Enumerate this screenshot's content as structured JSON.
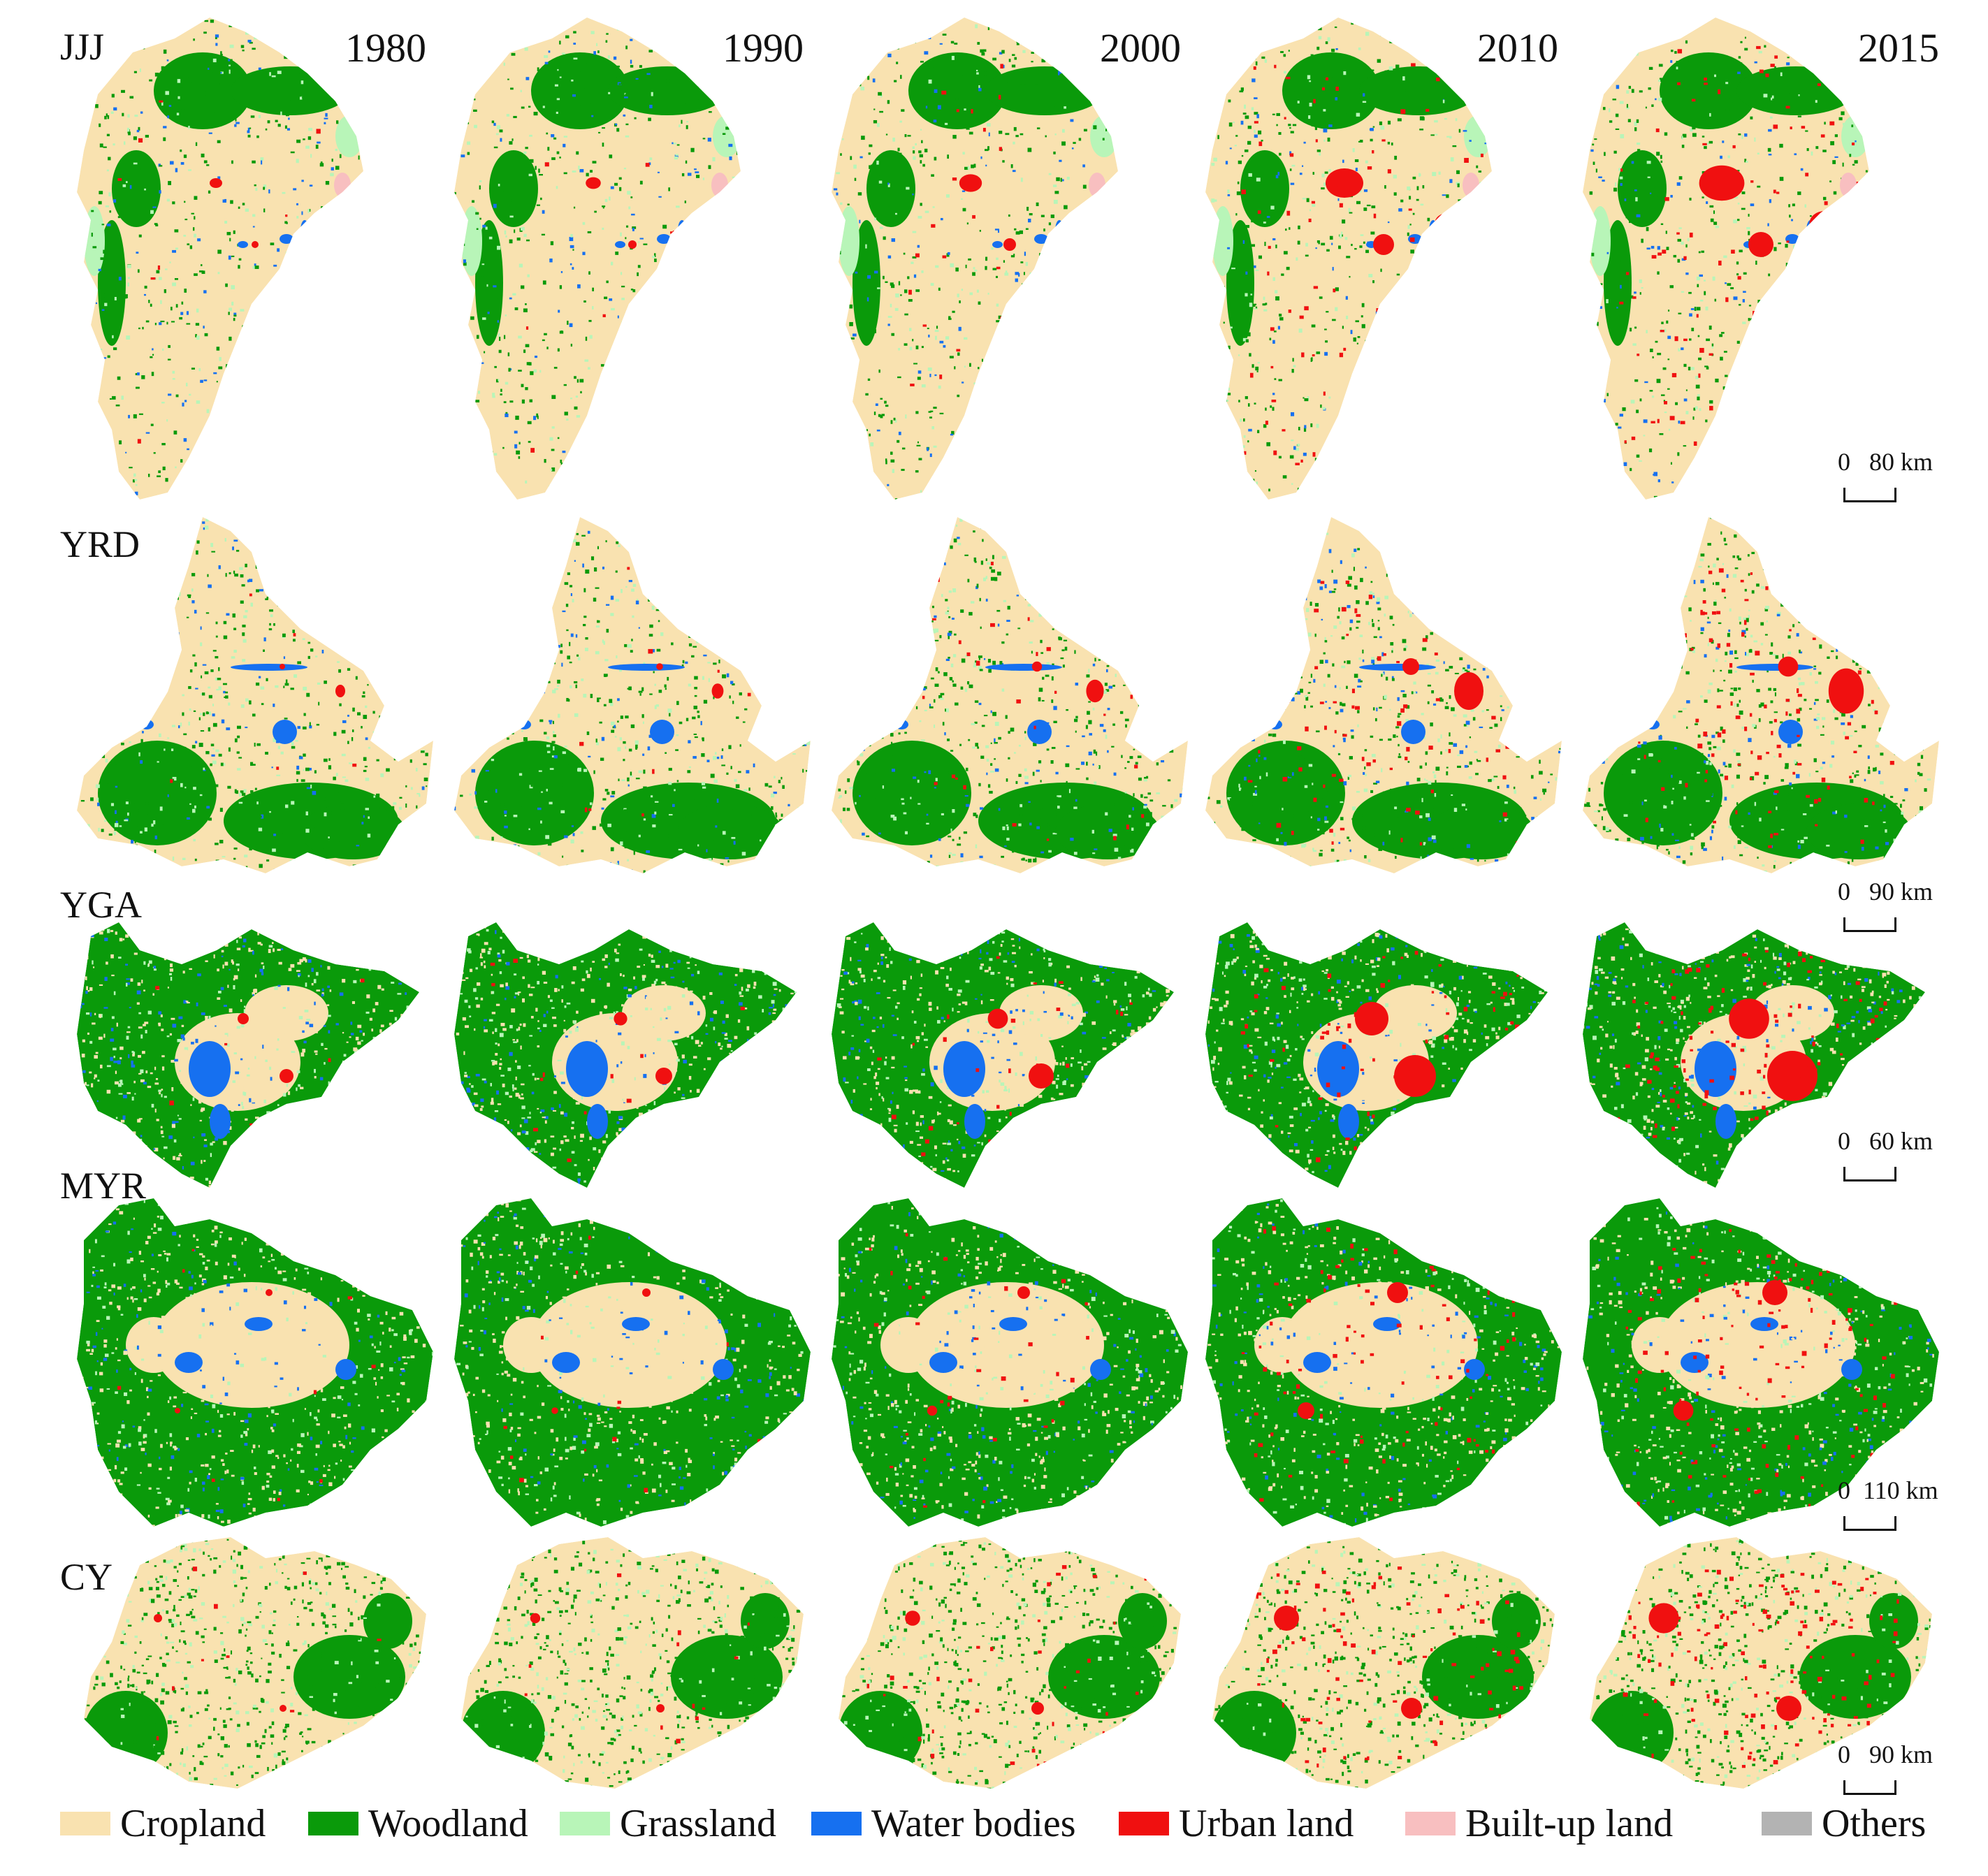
{
  "years": [
    "1980",
    "1990",
    "2000",
    "2010",
    "2015"
  ],
  "regions": [
    {
      "code": "JJJ",
      "scale": {
        "zero": "0",
        "distance": "80 km"
      }
    },
    {
      "code": "YRD",
      "scale": {
        "zero": "0",
        "distance": "90 km"
      }
    },
    {
      "code": "YGA",
      "scale": {
        "zero": "0",
        "distance": "60 km"
      }
    },
    {
      "code": "MYR",
      "scale": {
        "zero": "0",
        "distance": "110 km"
      }
    },
    {
      "code": "CY",
      "scale": {
        "zero": "0",
        "distance": "90 km"
      }
    }
  ],
  "legend": [
    {
      "label": "Cropland",
      "color": "#F9E2B0"
    },
    {
      "label": "Woodland",
      "color": "#0A9A0A"
    },
    {
      "label": "Grassland",
      "color": "#B8F5B8"
    },
    {
      "label": "Water bodies",
      "color": "#1670F0"
    },
    {
      "label": "Urban land",
      "color": "#F01010"
    },
    {
      "label": "Built-up land",
      "color": "#F8BFC0"
    },
    {
      "label": "Others",
      "color": "#B3B3B3"
    }
  ]
}
